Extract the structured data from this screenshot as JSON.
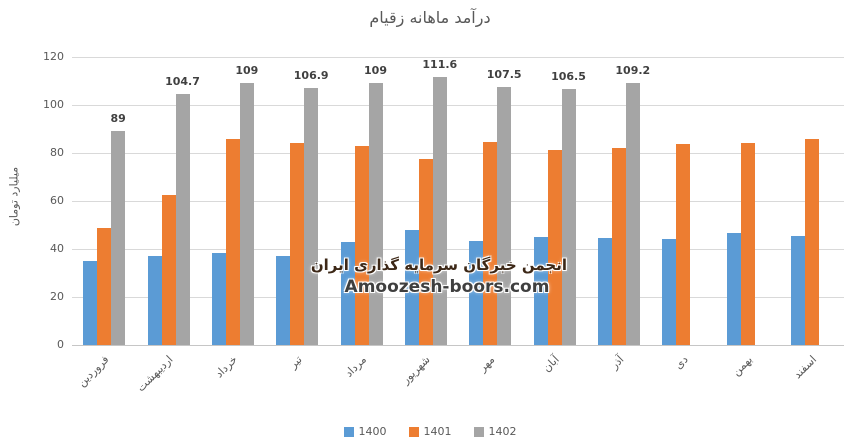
{
  "chart_data": {
    "type": "bar",
    "title": "درآمد ماهانه زقیام",
    "ylabel": "میلیارد تومان",
    "xlabel": "",
    "ylim": [
      0,
      120
    ],
    "yticks": [
      0,
      20,
      40,
      60,
      80,
      100,
      120
    ],
    "grid": true,
    "legend_position": "bottom",
    "categories": [
      "فروردین",
      "اردیبهشت",
      "خرداد",
      "تیر",
      "مرداد",
      "شهریور",
      "مهر",
      "آبان",
      "آذر",
      "دی",
      "بهمن",
      "اسفند"
    ],
    "series": [
      {
        "name": "1400",
        "color": "#5B9BD5",
        "show_labels": false,
        "values": [
          35,
          37,
          38.5,
          37,
          43,
          48,
          43.5,
          45,
          44.5,
          44,
          46.5,
          45.5
        ]
      },
      {
        "name": "1401",
        "color": "#ED7D31",
        "show_labels": false,
        "values": [
          48.8,
          62.5,
          86,
          84.3,
          83,
          77.5,
          84.7,
          81.4,
          82,
          83.8,
          84.3,
          86
        ]
      },
      {
        "name": "1402",
        "color": "#A5A5A5",
        "show_labels": true,
        "values": [
          89,
          104.7,
          109,
          106.9,
          109,
          111.6,
          107.5,
          106.5,
          109.2,
          null,
          null,
          null
        ]
      }
    ]
  },
  "watermark": {
    "line1": "انجمن خبرگان سرمایه گذاری ایران",
    "line2": "Amoozesh-boors.com"
  },
  "colors": {
    "title_text": "#595959",
    "axis_text": "#595959",
    "gridline": "#d9d9d9",
    "data_label": "#404040",
    "series_1400": "#5B9BD5",
    "series_1401": "#ED7D31",
    "series_1402": "#A5A5A5"
  }
}
